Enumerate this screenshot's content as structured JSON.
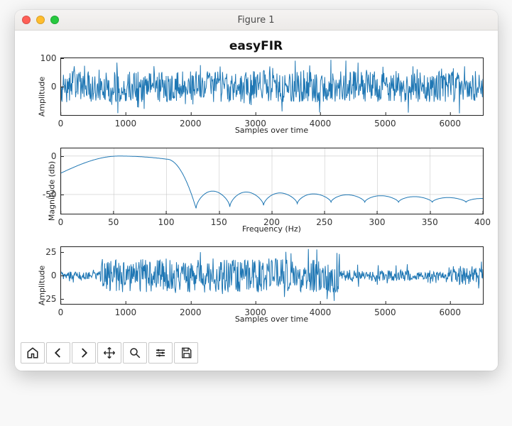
{
  "window": {
    "title": "Figure 1"
  },
  "figure": {
    "title": "easyFIR",
    "title_fontsize": 17,
    "background_color": "#ffffff"
  },
  "subplots": [
    {
      "type": "line",
      "ylabel": "Amplitude",
      "xlabel": "Samples over time",
      "xlim": [
        0,
        6500
      ],
      "ylim": [
        -100,
        100
      ],
      "xticks": [
        0,
        1000,
        2000,
        3000,
        4000,
        5000,
        6000
      ],
      "yticks": [
        0,
        100
      ],
      "grid": false,
      "series_color": "#1f77b4",
      "line_width": 1.0,
      "label_fontsize": 11,
      "tick_fontsize": 10,
      "noise_profile": {
        "type": "dense_noise",
        "base_amplitude": 55,
        "sample_count": 6500,
        "segments": [
          {
            "start": 0,
            "end": 6500,
            "amp": 55,
            "spike_amp": 95
          }
        ]
      }
    },
    {
      "type": "line",
      "ylabel": "Magnitude (db)",
      "xlabel": "Frequency (Hz)",
      "xlim": [
        0,
        400
      ],
      "ylim": [
        -75,
        10
      ],
      "xticks": [
        0,
        50,
        100,
        150,
        200,
        250,
        300,
        350,
        400
      ],
      "yticks": [
        -50,
        0
      ],
      "grid": true,
      "grid_color": "#c9c9c9",
      "series_color": "#1f77b4",
      "line_width": 1.4,
      "label_fontsize": 11,
      "tick_fontsize": 10,
      "filter_response": {
        "passband_start_db": -22,
        "passband_peak_freq": 55,
        "passband_peak_db": 0,
        "cutoff_freq": 100,
        "first_null_freq": 128,
        "null_db": -68,
        "lobe_peak_db": -45,
        "lobe_decay_per": 1.2,
        "lobe_spacing": 32,
        "num_lobes": 9
      }
    },
    {
      "type": "line",
      "ylabel": "Amplitude",
      "xlabel": "Samples over time",
      "xlim": [
        0,
        6500
      ],
      "ylim": [
        -30,
        30
      ],
      "xticks": [
        0,
        1000,
        2000,
        3000,
        4000,
        5000,
        6000
      ],
      "yticks": [
        -25,
        0,
        25
      ],
      "grid": false,
      "series_color": "#1f77b4",
      "line_width": 1.0,
      "label_fontsize": 11,
      "tick_fontsize": 10,
      "noise_profile": {
        "type": "dense_noise",
        "sample_count": 6500,
        "segments": [
          {
            "start": 0,
            "end": 600,
            "amp": 4,
            "spike_amp": 8
          },
          {
            "start": 600,
            "end": 4300,
            "amp": 18,
            "spike_amp": 28
          },
          {
            "start": 4300,
            "end": 5400,
            "amp": 6,
            "spike_amp": 12
          },
          {
            "start": 5400,
            "end": 6000,
            "amp": 4,
            "spike_amp": 9
          },
          {
            "start": 6000,
            "end": 6500,
            "amp": 10,
            "spike_amp": 16
          }
        ]
      }
    }
  ],
  "toolbar": {
    "buttons": [
      {
        "name": "home-icon",
        "label": "Home"
      },
      {
        "name": "back-icon",
        "label": "Back"
      },
      {
        "name": "forward-icon",
        "label": "Forward"
      },
      {
        "name": "pan-icon",
        "label": "Pan"
      },
      {
        "name": "zoom-icon",
        "label": "Zoom"
      },
      {
        "name": "configure-icon",
        "label": "Configure subplots"
      },
      {
        "name": "save-icon",
        "label": "Save"
      }
    ]
  }
}
